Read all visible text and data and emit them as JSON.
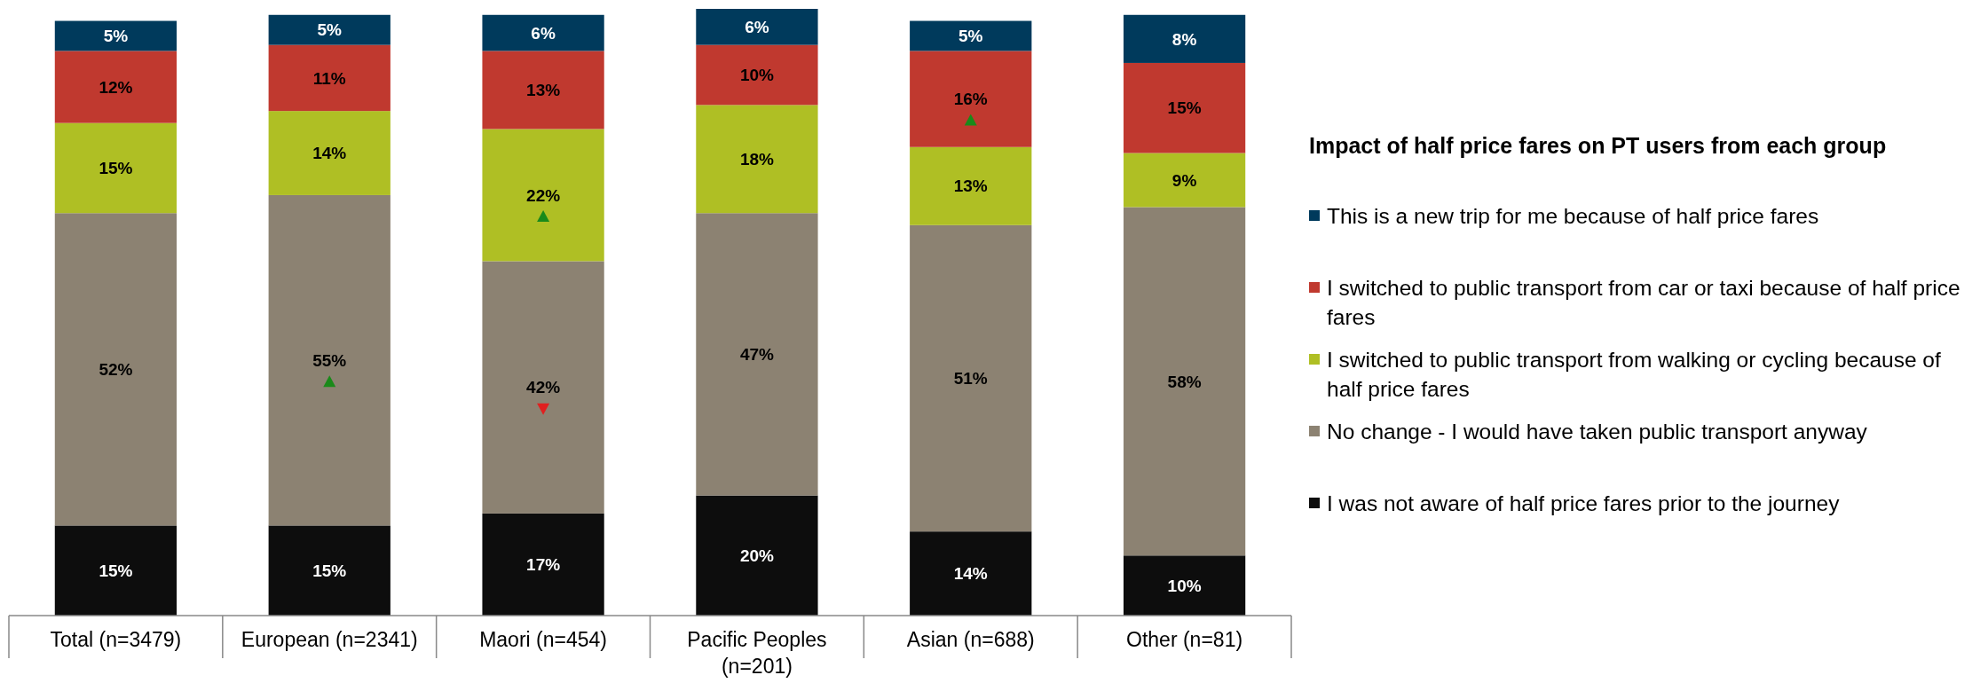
{
  "chart_data": {
    "type": "bar",
    "stacked": true,
    "legend": "right",
    "legend_title": "Impact of half price fares on PT users from each group",
    "categories": [
      "Total (n=3479)",
      "European (n=2341)",
      "Maori (n=454)",
      "Pacific Peoples (n=201)",
      "Asian (n=688)",
      "Other (n=81)"
    ],
    "series": [
      {
        "name": "I was not aware of half price fares prior to the journey",
        "color": "#0d0d0d",
        "values": [
          15,
          15,
          17,
          20,
          14,
          10
        ],
        "value_labels": [
          "15%",
          "15%",
          "17%",
          "20%",
          "14%",
          "10%"
        ]
      },
      {
        "name": "No change - I would have taken public transport anyway",
        "color": "#8c8272",
        "values": [
          52,
          55,
          42,
          47,
          51,
          58
        ],
        "value_labels": [
          "52%",
          "55%",
          "42%",
          "47%",
          "51%",
          "58%"
        ]
      },
      {
        "name": "I switched to public transport from walking or cycling because of half price fares",
        "color": "#afbf24",
        "values": [
          15,
          14,
          22,
          18,
          13,
          9
        ],
        "value_labels": [
          "15%",
          "14%",
          "22%",
          "18%",
          "13%",
          "9%"
        ]
      },
      {
        "name": "I switched to public transport from car or taxi because of half price fares",
        "color": "#c0392f",
        "values": [
          12,
          11,
          13,
          10,
          16,
          15
        ],
        "value_labels": [
          "12%",
          "11%",
          "13%",
          "10%",
          "16%",
          "15%"
        ]
      },
      {
        "name": "This is a new trip for me because of half price fares",
        "color": "#003a5c",
        "values": [
          5,
          5,
          6,
          6,
          5,
          8
        ],
        "value_labels": [
          "5%",
          "5%",
          "6%",
          "6%",
          "5%",
          "8%"
        ]
      }
    ]
  }
}
